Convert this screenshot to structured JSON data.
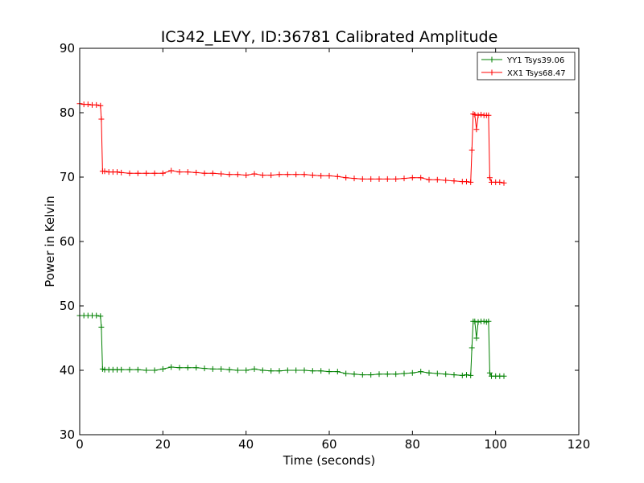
{
  "chart_data": {
    "type": "line",
    "title": "IC342_LEVY, ID:36781 Calibrated Amplitude",
    "xlabel": "Time (seconds)",
    "ylabel": "Power in Kelvin",
    "xlim": [
      0,
      120
    ],
    "ylim": [
      30,
      90
    ],
    "xticks": [
      "0",
      "20",
      "40",
      "60",
      "80",
      "100",
      "120"
    ],
    "yticks": [
      "30",
      "40",
      "50",
      "60",
      "70",
      "80",
      "90"
    ],
    "grid": false,
    "legend_position": "top-right",
    "marker": "plus",
    "series": [
      {
        "name": "YY1 Tsys39.06",
        "color": "#008000",
        "points": [
          [
            0,
            48.5
          ],
          [
            1,
            48.5
          ],
          [
            2,
            48.5
          ],
          [
            3,
            48.5
          ],
          [
            4,
            48.5
          ],
          [
            5,
            48.4
          ],
          [
            5.2,
            46.7
          ],
          [
            5.5,
            40.2
          ],
          [
            6,
            40.1
          ],
          [
            7,
            40.1
          ],
          [
            8,
            40.1
          ],
          [
            9,
            40.1
          ],
          [
            10,
            40.1
          ],
          [
            12,
            40.1
          ],
          [
            14,
            40.1
          ],
          [
            16,
            40.0
          ],
          [
            18,
            40.0
          ],
          [
            20,
            40.2
          ],
          [
            22,
            40.5
          ],
          [
            24,
            40.4
          ],
          [
            26,
            40.4
          ],
          [
            28,
            40.4
          ],
          [
            30,
            40.3
          ],
          [
            32,
            40.2
          ],
          [
            34,
            40.2
          ],
          [
            36,
            40.1
          ],
          [
            38,
            40.0
          ],
          [
            40,
            40.0
          ],
          [
            42,
            40.2
          ],
          [
            44,
            40.0
          ],
          [
            46,
            39.9
          ],
          [
            48,
            39.9
          ],
          [
            50,
            40.0
          ],
          [
            52,
            40.0
          ],
          [
            54,
            40.0
          ],
          [
            56,
            39.9
          ],
          [
            58,
            39.9
          ],
          [
            60,
            39.8
          ],
          [
            62,
            39.8
          ],
          [
            64,
            39.5
          ],
          [
            66,
            39.4
          ],
          [
            68,
            39.3
          ],
          [
            70,
            39.3
          ],
          [
            72,
            39.4
          ],
          [
            74,
            39.4
          ],
          [
            76,
            39.4
          ],
          [
            78,
            39.5
          ],
          [
            80,
            39.6
          ],
          [
            82,
            39.8
          ],
          [
            84,
            39.6
          ],
          [
            86,
            39.5
          ],
          [
            88,
            39.4
          ],
          [
            90,
            39.3
          ],
          [
            92,
            39.2
          ],
          [
            93,
            39.3
          ],
          [
            94,
            39.2
          ],
          [
            94.3,
            43.5
          ],
          [
            94.6,
            47.6
          ],
          [
            95,
            47.6
          ],
          [
            95.4,
            45.0
          ],
          [
            95.8,
            47.5
          ],
          [
            96.5,
            47.6
          ],
          [
            97.2,
            47.6
          ],
          [
            97.8,
            47.5
          ],
          [
            98.3,
            47.6
          ],
          [
            98.6,
            39.6
          ],
          [
            99,
            39.1
          ],
          [
            100,
            39.1
          ],
          [
            101,
            39.1
          ],
          [
            102,
            39.1
          ]
        ]
      },
      {
        "name": "XX1 Tsys68.47",
        "color": "#ff0000",
        "points": [
          [
            0,
            81.4
          ],
          [
            1,
            81.3
          ],
          [
            2,
            81.3
          ],
          [
            3,
            81.2
          ],
          [
            4,
            81.2
          ],
          [
            5,
            81.1
          ],
          [
            5.2,
            79.0
          ],
          [
            5.5,
            70.9
          ],
          [
            6,
            70.9
          ],
          [
            7,
            70.8
          ],
          [
            8,
            70.8
          ],
          [
            9,
            70.8
          ],
          [
            10,
            70.7
          ],
          [
            12,
            70.6
          ],
          [
            14,
            70.6
          ],
          [
            16,
            70.6
          ],
          [
            18,
            70.6
          ],
          [
            20,
            70.6
          ],
          [
            22,
            71.0
          ],
          [
            24,
            70.8
          ],
          [
            26,
            70.8
          ],
          [
            28,
            70.7
          ],
          [
            30,
            70.6
          ],
          [
            32,
            70.6
          ],
          [
            34,
            70.5
          ],
          [
            36,
            70.4
          ],
          [
            38,
            70.4
          ],
          [
            40,
            70.3
          ],
          [
            42,
            70.5
          ],
          [
            44,
            70.3
          ],
          [
            46,
            70.3
          ],
          [
            48,
            70.4
          ],
          [
            50,
            70.4
          ],
          [
            52,
            70.4
          ],
          [
            54,
            70.4
          ],
          [
            56,
            70.3
          ],
          [
            58,
            70.2
          ],
          [
            60,
            70.2
          ],
          [
            62,
            70.1
          ],
          [
            64,
            69.9
          ],
          [
            66,
            69.8
          ],
          [
            68,
            69.7
          ],
          [
            70,
            69.7
          ],
          [
            72,
            69.7
          ],
          [
            74,
            69.7
          ],
          [
            76,
            69.7
          ],
          [
            78,
            69.8
          ],
          [
            80,
            69.9
          ],
          [
            82,
            69.9
          ],
          [
            84,
            69.6
          ],
          [
            86,
            69.6
          ],
          [
            88,
            69.5
          ],
          [
            90,
            69.4
          ],
          [
            92,
            69.3
          ],
          [
            93,
            69.3
          ],
          [
            94,
            69.2
          ],
          [
            94.3,
            74.2
          ],
          [
            94.6,
            79.8
          ],
          [
            95,
            79.7
          ],
          [
            95.4,
            77.4
          ],
          [
            95.8,
            79.6
          ],
          [
            96.5,
            79.7
          ],
          [
            97.2,
            79.6
          ],
          [
            97.8,
            79.6
          ],
          [
            98.3,
            79.6
          ],
          [
            98.6,
            69.9
          ],
          [
            99,
            69.2
          ],
          [
            100,
            69.2
          ],
          [
            101,
            69.2
          ],
          [
            102,
            69.1
          ]
        ]
      }
    ]
  }
}
